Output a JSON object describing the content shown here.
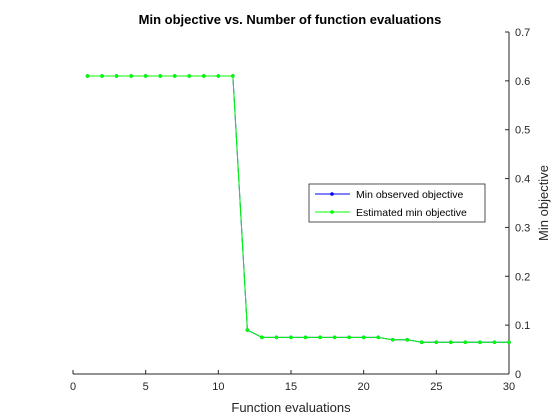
{
  "chart_data": {
    "type": "line",
    "title": "Min objective vs. Number of function evaluations",
    "xlabel": "Function evaluations",
    "ylabel": "Min objective",
    "xlim": [
      0,
      30
    ],
    "ylim": [
      0,
      0.7
    ],
    "x_ticks": [
      "0",
      "5",
      "10",
      "15",
      "20",
      "25",
      "30"
    ],
    "y_ticks": [
      "0",
      "0.1",
      "0.2",
      "0.3",
      "0.4",
      "0.5",
      "0.6",
      "0.7"
    ],
    "y_axis_side": "right",
    "grid": false,
    "legend_position": "right",
    "x": [
      1,
      2,
      3,
      4,
      5,
      6,
      7,
      8,
      9,
      10,
      11,
      12,
      13,
      14,
      15,
      16,
      17,
      18,
      19,
      20,
      21,
      22,
      23,
      24,
      25,
      26,
      27,
      28,
      29,
      30
    ],
    "series": [
      {
        "name": "Min observed objective",
        "color": "#0000ff",
        "values": [
          0.61,
          0.61,
          0.61,
          0.61,
          0.61,
          0.61,
          0.61,
          0.61,
          0.61,
          0.61,
          0.61,
          0.09,
          0.075,
          0.075,
          0.075,
          0.075,
          0.075,
          0.075,
          0.075,
          0.075,
          0.075,
          0.07,
          0.07,
          0.065,
          0.065,
          0.065,
          0.065,
          0.065,
          0.065,
          0.065
        ]
      },
      {
        "name": "Estimated min objective",
        "color": "#00ff00",
        "values": [
          0.61,
          0.61,
          0.61,
          0.61,
          0.61,
          0.61,
          0.61,
          0.61,
          0.61,
          0.61,
          0.61,
          0.09,
          0.075,
          0.075,
          0.075,
          0.075,
          0.075,
          0.075,
          0.075,
          0.075,
          0.075,
          0.07,
          0.07,
          0.065,
          0.065,
          0.065,
          0.065,
          0.065,
          0.065,
          0.065
        ]
      }
    ]
  }
}
